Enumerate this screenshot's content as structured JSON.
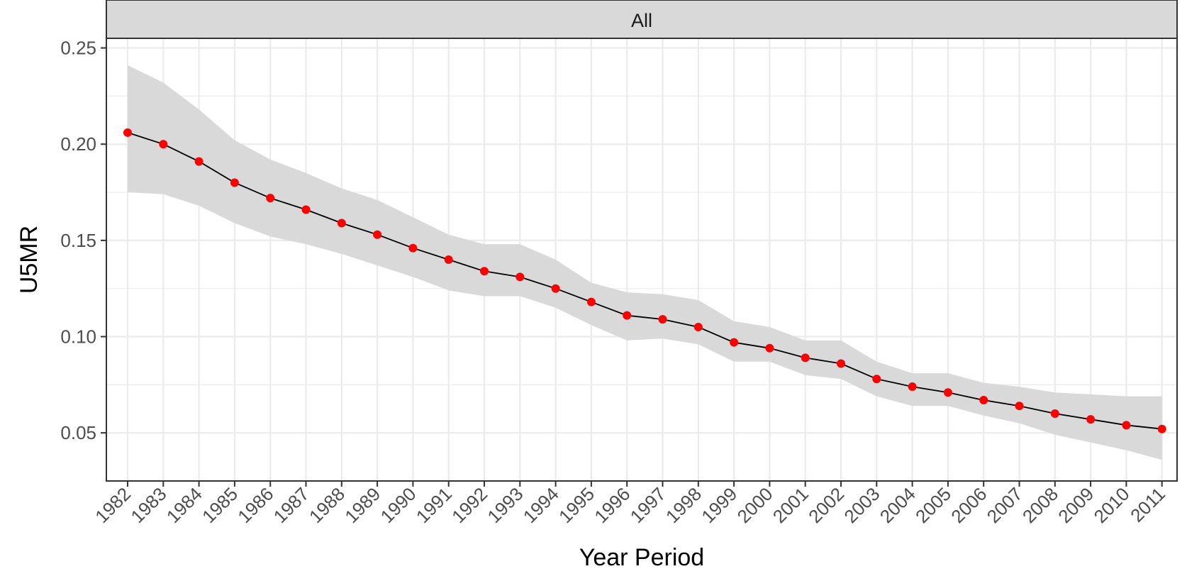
{
  "chart_data": {
    "type": "line",
    "panel_label": "All",
    "xlabel": "Year Period",
    "ylabel": "U5MR",
    "ylim": [
      0.025,
      0.255
    ],
    "y_ticks": [
      0.05,
      0.1,
      0.15,
      0.2,
      0.25
    ],
    "y_tick_labels": [
      "0.05",
      "0.10",
      "0.15",
      "0.20",
      "0.25"
    ],
    "grid": true,
    "categories": [
      "1982",
      "1983",
      "1984",
      "1985",
      "1986",
      "1987",
      "1988",
      "1989",
      "1990",
      "1991",
      "1992",
      "1993",
      "1994",
      "1995",
      "1996",
      "1997",
      "1998",
      "1999",
      "2000",
      "2001",
      "2002",
      "2003",
      "2004",
      "2005",
      "2006",
      "2007",
      "2008",
      "2009",
      "2010",
      "2011"
    ],
    "series": [
      {
        "values": [
          0.206,
          0.2,
          0.191,
          0.18,
          0.172,
          0.166,
          0.159,
          0.153,
          0.146,
          0.14,
          0.134,
          0.131,
          0.125,
          0.118,
          0.111,
          0.109,
          0.105,
          0.097,
          0.094,
          0.089,
          0.086,
          0.078,
          0.074,
          0.071,
          0.067,
          0.064,
          0.06,
          0.057,
          0.054,
          0.052
        ],
        "lower": [
          0.175,
          0.174,
          0.168,
          0.159,
          0.152,
          0.148,
          0.143,
          0.137,
          0.131,
          0.124,
          0.121,
          0.121,
          0.115,
          0.106,
          0.098,
          0.099,
          0.096,
          0.087,
          0.087,
          0.08,
          0.078,
          0.069,
          0.064,
          0.064,
          0.059,
          0.055,
          0.049,
          0.045,
          0.041,
          0.036
        ],
        "upper": [
          0.241,
          0.232,
          0.218,
          0.202,
          0.192,
          0.185,
          0.177,
          0.171,
          0.162,
          0.153,
          0.148,
          0.148,
          0.14,
          0.128,
          0.123,
          0.122,
          0.119,
          0.108,
          0.105,
          0.098,
          0.098,
          0.087,
          0.081,
          0.081,
          0.076,
          0.074,
          0.071,
          0.07,
          0.069,
          0.069
        ]
      }
    ],
    "colors": {
      "line": "#000000",
      "points": "#ff0000",
      "ribbon": "#d9d9d9",
      "strip_fill": "#d9d9d9",
      "grid": "#ebebeb",
      "border": "#333333"
    }
  }
}
